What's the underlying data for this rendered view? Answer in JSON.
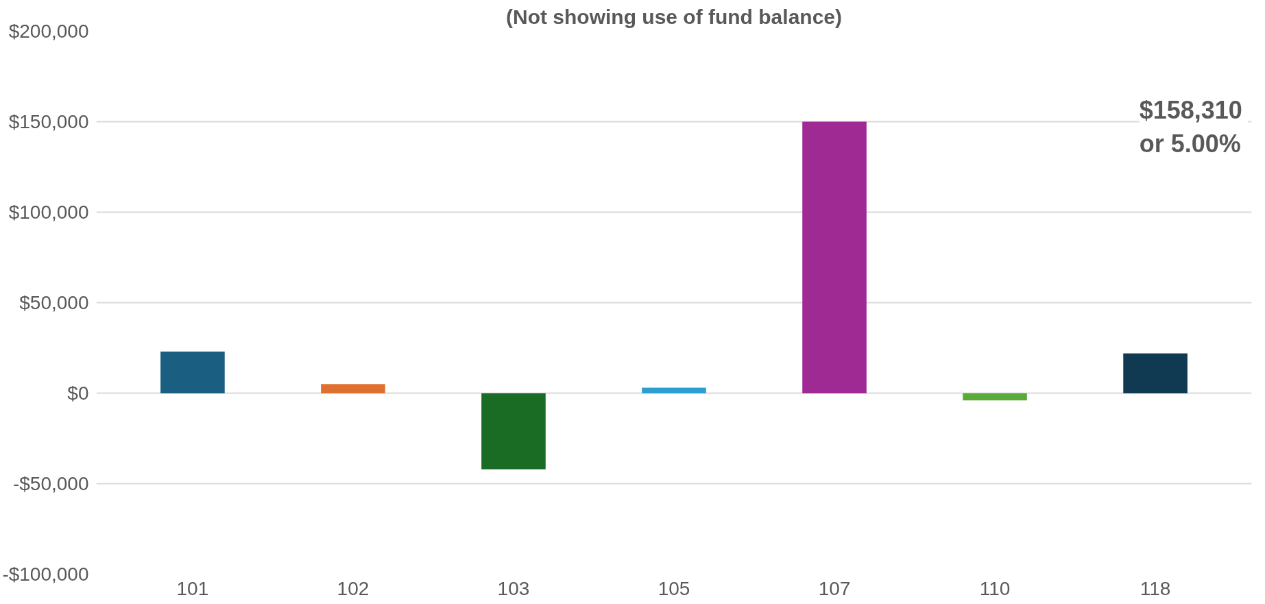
{
  "chart_data": {
    "type": "bar",
    "title": "(Not showing use of fund balance)",
    "categories": [
      "101",
      "102",
      "103",
      "105",
      "107",
      "110",
      "118"
    ],
    "values": [
      23000,
      5000,
      -42000,
      3000,
      150000,
      -4000,
      22000
    ],
    "colors": [
      "#1a5e82",
      "#e07030",
      "#1a6b24",
      "#2a9fd0",
      "#a02a94",
      "#5aaa3a",
      "#0f3a52"
    ],
    "ylim": [
      -100000,
      200000
    ],
    "yticks": [
      {
        "value": -100000,
        "label": "-$100,000"
      },
      {
        "value": -50000,
        "label": "-$50,000"
      },
      {
        "value": 0,
        "label": "$0"
      },
      {
        "value": 50000,
        "label": "$50,000"
      },
      {
        "value": 100000,
        "label": "$100,000"
      },
      {
        "value": 150000,
        "label": "$150,000"
      },
      {
        "value": 200000,
        "label": "$200,000"
      }
    ],
    "grid": "y",
    "annotations": [
      "$158,310\nor  5.00%"
    ]
  }
}
